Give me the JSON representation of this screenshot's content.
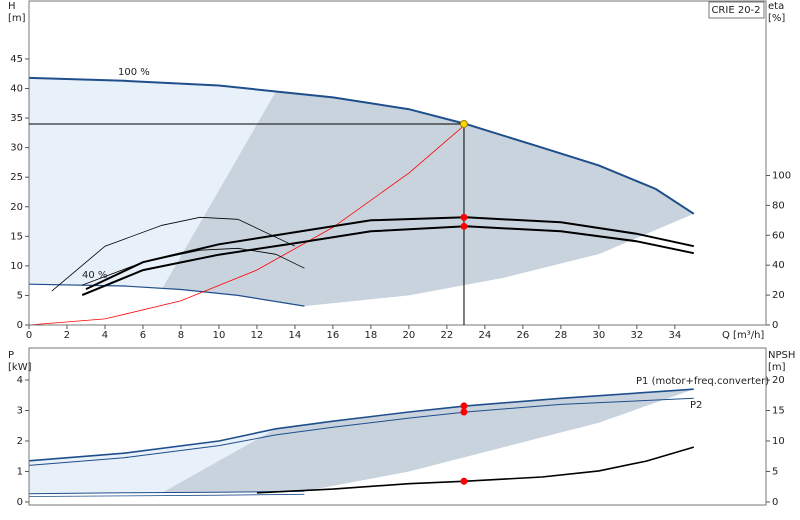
{
  "chart_data": [
    {
      "type": "line",
      "title": "CRIE 20-2",
      "ylabel": [
        "H",
        "[m]"
      ],
      "y2label": [
        "eta",
        "[%]"
      ],
      "xlabel": "Q [m³/h]",
      "xlim": [
        0,
        38.8
      ],
      "xticks": [
        0,
        2,
        4,
        6,
        8,
        10,
        12,
        14,
        16,
        18,
        20,
        22,
        24,
        26,
        28,
        30,
        32,
        34
      ],
      "ylim": [
        0,
        54.8
      ],
      "yticks": [
        0,
        5,
        10,
        15,
        20,
        25,
        30,
        35,
        40,
        45
      ],
      "y2lim": [
        0,
        216.7
      ],
      "y2ticks": [
        0,
        20,
        40,
        60,
        80,
        100
      ],
      "annotations": [
        "100 %",
        "40 %"
      ],
      "series": [
        {
          "kind": "area",
          "color": "#e8f0f9",
          "x": [
            0,
            5,
            10,
            13,
            7,
            5,
            0
          ],
          "values": [
            41.8,
            41.3,
            40.5,
            39.5,
            6.1,
            6.6,
            6.9
          ]
        },
        {
          "kind": "area",
          "color": "#c9d3de",
          "x": [
            7,
            13,
            16,
            20,
            23,
            27,
            30,
            33,
            35,
            30,
            25,
            20,
            14.5,
            11,
            8
          ],
          "values": [
            6.1,
            39.5,
            38.5,
            36.5,
            34,
            30,
            27,
            23,
            18.8,
            12,
            8,
            5,
            3.2,
            5.0,
            6.0
          ]
        },
        {
          "color": "#1f4e8c",
          "width": 2,
          "x": [
            0,
            5,
            10,
            13,
            16,
            20,
            23,
            27,
            30,
            33,
            35
          ],
          "values": [
            41.8,
            41.3,
            40.5,
            39.5,
            38.5,
            36.5,
            34,
            30,
            27,
            23,
            18.8
          ]
        },
        {
          "color": "#1f4e8c",
          "width": 1.2,
          "x": [
            0,
            5,
            8,
            11,
            14.5
          ],
          "values": [
            6.9,
            6.6,
            6.0,
            5.0,
            3.2
          ]
        },
        {
          "color": "#ff0000",
          "width": 0.8,
          "x": [
            0,
            4,
            8,
            12,
            16,
            20,
            23
          ],
          "values": [
            0,
            1.03,
            4.1,
            9.3,
            16.5,
            25.7,
            34
          ]
        },
        {
          "color": "#000000",
          "width": 2,
          "axis": "y2",
          "x": [
            3,
            6,
            10,
            14,
            18,
            23,
            28,
            32,
            35
          ],
          "values": [
            24,
            42,
            54,
            62,
            70,
            72,
            68.7,
            61,
            52.7
          ]
        },
        {
          "color": "#000000",
          "width": 2,
          "axis": "y2",
          "x": [
            2.8,
            6,
            10,
            14,
            18,
            23,
            28,
            32,
            35
          ],
          "values": [
            20,
            36.7,
            47,
            54.7,
            62.7,
            66,
            62.7,
            56,
            48
          ]
        },
        {
          "color": "#000000",
          "width": 0.8,
          "axis": "y2",
          "x": [
            1.2,
            4,
            7,
            9,
            11,
            14
          ],
          "values": [
            22.7,
            52.7,
            66.7,
            72,
            70.7,
            52.7
          ]
        },
        {
          "color": "#000000",
          "width": 0.8,
          "axis": "y2",
          "x": [
            2.8,
            6,
            9,
            11,
            13,
            14.5
          ],
          "values": [
            26.7,
            42,
            50,
            51.3,
            47.3,
            38
          ]
        }
      ],
      "operating_point": {
        "x": 22.9,
        "y": 34,
        "color": "#ffd700"
      },
      "markers": [
        {
          "x": 22.9,
          "y": 72,
          "axis": "y2",
          "color": "#ff0000"
        },
        {
          "x": 22.9,
          "y": 66,
          "axis": "y2",
          "color": "#ff0000"
        }
      ]
    },
    {
      "type": "line",
      "ylabel": [
        "P",
        "[kW]"
      ],
      "y2label": [
        "NPSH",
        "[m]"
      ],
      "xlim": [
        0,
        38.8
      ],
      "ylim": [
        -0.1,
        5.05
      ],
      "yticks": [
        0,
        1,
        2,
        3,
        4
      ],
      "y2lim": [
        -0.5,
        25.25
      ],
      "y2ticks": [
        0,
        5,
        10,
        15,
        20
      ],
      "series": [
        {
          "kind": "area",
          "color": "#e8f0f9",
          "x": [
            0,
            5,
            10,
            13,
            7,
            0
          ],
          "values": [
            1.35,
            1.6,
            2.0,
            2.4,
            0.3,
            0.27
          ]
        },
        {
          "kind": "area",
          "color": "#c9d3de",
          "x": [
            7,
            13,
            16,
            20,
            23,
            28,
            35,
            30,
            25,
            20,
            14.5,
            10
          ],
          "values": [
            0.3,
            2.4,
            2.65,
            2.95,
            3.15,
            3.4,
            3.7,
            2.6,
            1.8,
            1.0,
            0.35,
            0.32
          ]
        },
        {
          "name": "P1 (motor+freq.converter)",
          "color": "#1f4e8c",
          "width": 1.6,
          "x": [
            0,
            5,
            10,
            13,
            16,
            20,
            23,
            28,
            35
          ],
          "values": [
            1.35,
            1.6,
            2.0,
            2.4,
            2.65,
            2.95,
            3.15,
            3.4,
            3.7
          ]
        },
        {
          "name": "P2",
          "color": "#1f4e8c",
          "width": 1,
          "x": [
            0,
            5,
            10,
            13,
            16,
            20,
            23,
            28,
            35
          ],
          "values": [
            1.2,
            1.45,
            1.85,
            2.2,
            2.45,
            2.75,
            2.95,
            3.2,
            3.4
          ]
        },
        {
          "color": "#1f4e8c",
          "width": 1,
          "x": [
            0,
            5,
            10,
            14.5
          ],
          "values": [
            0.27,
            0.3,
            0.32,
            0.35
          ]
        },
        {
          "color": "#1f4e8c",
          "width": 0.8,
          "x": [
            0,
            5,
            10,
            14.5
          ],
          "values": [
            0.18,
            0.2,
            0.22,
            0.25
          ]
        },
        {
          "color": "#000000",
          "width": 1.6,
          "axis": "y2",
          "x": [
            12,
            16,
            20,
            23,
            27,
            30,
            32.5,
            35
          ],
          "values": [
            1.5,
            2.1,
            3.0,
            3.4,
            4.1,
            5.1,
            6.7,
            9.0
          ]
        }
      ],
      "markers": [
        {
          "x": 22.9,
          "y": 3.15,
          "color": "#ff0000"
        },
        {
          "x": 22.9,
          "y": 2.95,
          "color": "#ff0000"
        },
        {
          "x": 22.9,
          "y": 3.4,
          "axis": "y2",
          "color": "#ff0000"
        }
      ]
    }
  ]
}
